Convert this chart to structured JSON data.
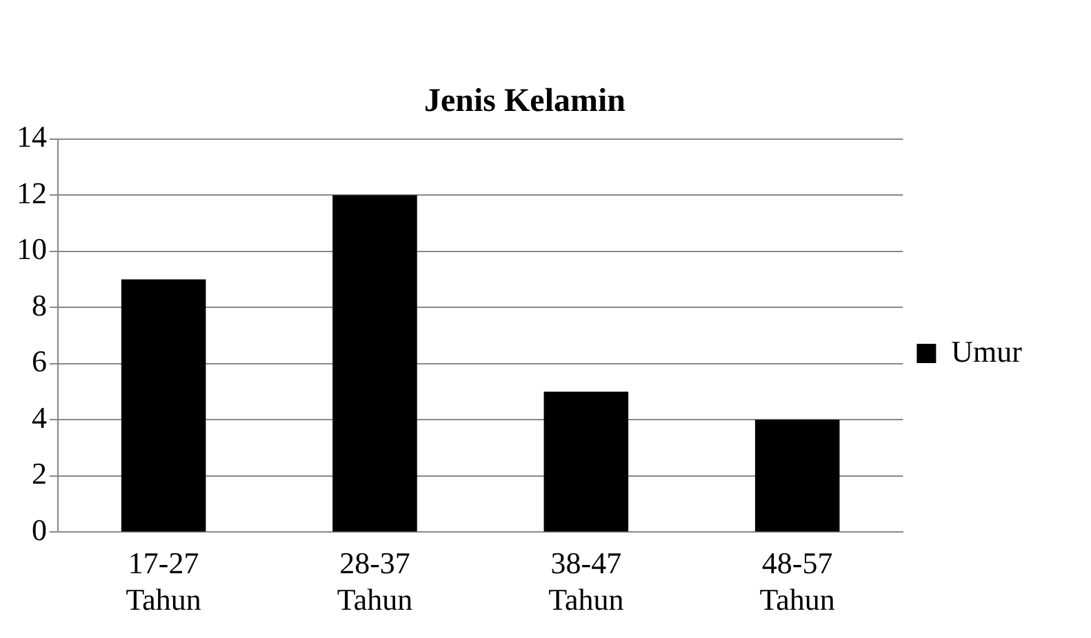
{
  "chart_data": {
    "type": "bar",
    "title": "Jenis Kelamin",
    "categories": [
      "17-27 Tahun",
      "28-37 Tahun",
      "38-47 Tahun",
      "48-57 Tahun"
    ],
    "series": [
      {
        "name": "Umur",
        "color": "#000000",
        "values": [
          9,
          12,
          5,
          4
        ]
      }
    ],
    "ylim": [
      0,
      14
    ],
    "yticks": [
      0,
      2,
      4,
      6,
      8,
      10,
      12,
      14
    ],
    "grid": "y",
    "legend": "right"
  }
}
